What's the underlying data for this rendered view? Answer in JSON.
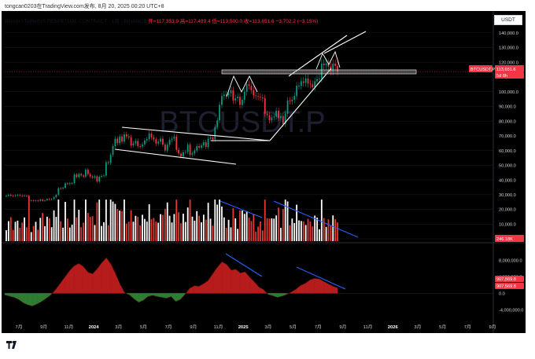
{
  "header": {
    "attribution": "tongcan0203在TradingView.com发布, 8月 20, 2025 00:20 UTC+8"
  },
  "symbol": {
    "name": "Bitcoin / TetherUS PERPETUAL CONTRACT · 1周 · BINANCE",
    "ohlc": "开=117,353.9  高=117,499.4  低=113,500.0  收=113,651.6  −3,702.2 (−3.15%)"
  },
  "currency_button": "USDT",
  "watermark": "BTCUSDT.P",
  "badges": {
    "price_symbol": "BTCUSDT.P",
    "price_value": "113,651.6",
    "countdown": "5d 8h",
    "volume_value": "246.18K",
    "osc_value_1": "907,569.8",
    "osc_value_2": "907,569.8"
  },
  "colors": {
    "up": "#089981",
    "down": "#f23645",
    "badge": "#f23645",
    "trendline_white": "#ffffff",
    "trendline_blue": "#2962ff",
    "osc_up": "#b71c1c",
    "osc_down": "#2e7d32",
    "background": "#ffffff",
    "chart_bg": "#000000"
  },
  "chart_data": [
    {
      "type": "candlestick",
      "timeframe": "1W",
      "price_axis": [
        "140,000.0",
        "130,000.0",
        "120,000.0",
        "110,000.0",
        "100,000.0",
        "90,000.0",
        "80,000.0",
        "70,000.0",
        "60,000.0",
        "50,000.0",
        "40,000.0",
        "30,000.0",
        "20,000.0",
        "10,000.0",
        "0.0"
      ],
      "ylim": [
        0,
        142000
      ],
      "x_axis": [
        "7月",
        "9月",
        "11月",
        "2024",
        "3月",
        "5月",
        "7月",
        "9月",
        "11月",
        "2025",
        "3月",
        "5月",
        "7月",
        "9月",
        "11月",
        "2026",
        "3月",
        "5月",
        "7月",
        "9月"
      ],
      "close": [
        29200,
        29900,
        29300,
        29100,
        29600,
        29700,
        29400,
        29100,
        29400,
        29200,
        26000,
        26100,
        25900,
        26000,
        25800,
        26600,
        25800,
        26200,
        27000,
        26800,
        27000,
        28300,
        29900,
        34400,
        34200,
        34700,
        37700,
        37300,
        37700,
        37800,
        43700,
        41900,
        44000,
        43100,
        42300,
        47000,
        43900,
        42400,
        41600,
        42400,
        39000,
        42200,
        42700,
        43000,
        52000,
        51500,
        57000,
        63000,
        68000,
        65000,
        69500,
        66000,
        71000,
        69600,
        69000,
        63500,
        64900,
        66500,
        63000,
        62700,
        64200,
        66800,
        67700,
        71500,
        69000,
        67500,
        64800,
        66000,
        68000,
        64000,
        60000,
        64000,
        67300,
        68000,
        69500,
        60500,
        58000,
        56000,
        58800,
        59000,
        64000,
        57000,
        58000,
        60000,
        63000,
        62000,
        63500,
        65600,
        62500,
        68000,
        69000,
        67500,
        76000,
        80500,
        91000,
        97000,
        98000,
        97500,
        99000,
        101000,
        94000,
        95500,
        96500,
        91000,
        94500,
        100000,
        105000,
        104000,
        101000,
        97500,
        97000,
        96500,
        96000,
        95500,
        85000,
        84000,
        80500,
        82500,
        83000,
        87000,
        82000,
        83500,
        78000,
        85000,
        94000,
        93500,
        94500,
        97000,
        104000,
        104000,
        107000,
        106000,
        109000,
        105500,
        105000,
        103000,
        107000,
        108500,
        109000,
        119000,
        118000,
        119000,
        117000,
        114000,
        119000,
        117500,
        113651.6
      ],
      "volume_ylim": [
        0,
        28000
      ],
      "volume_axis": [
        "20,000.0",
        "10,000.0",
        "0.0"
      ]
    },
    {
      "type": "area",
      "name": "",
      "values": [
        -400000,
        -700000,
        -1000000,
        -1500000,
        -2300000,
        -2800000,
        -3100000,
        -2600000,
        -2000000,
        -1200000,
        -400000,
        900000,
        2400000,
        3900000,
        5400000,
        6600000,
        7200000,
        6500000,
        5100000,
        4700000,
        5900000,
        7400000,
        8600000,
        7000000,
        4700000,
        2100000,
        100000,
        -400000,
        -1400000,
        -2200000,
        -1700000,
        -800000,
        -500000,
        -800000,
        -1000000,
        -1200000,
        -800000,
        -2000000,
        -1500000,
        -300000,
        1200000,
        1800000,
        1700000,
        2300000,
        3100000,
        4700000,
        6300000,
        7600000,
        7000000,
        5600000,
        5800000,
        4900000,
        5200000,
        3900000,
        2800000,
        1500000,
        900000,
        -300000,
        -600000,
        -1000000,
        -700000,
        -300000,
        300000,
        1000000,
        1900000,
        2400000,
        3200000,
        3600000,
        3500000,
        2900000,
        2300000,
        1700000,
        1300000
      ],
      "axis": [
        "8,000,000.0",
        "4,000,000.0",
        "0.0",
        "-4,000,000.0"
      ],
      "ylim": [
        -6000000,
        10500000
      ]
    }
  ]
}
